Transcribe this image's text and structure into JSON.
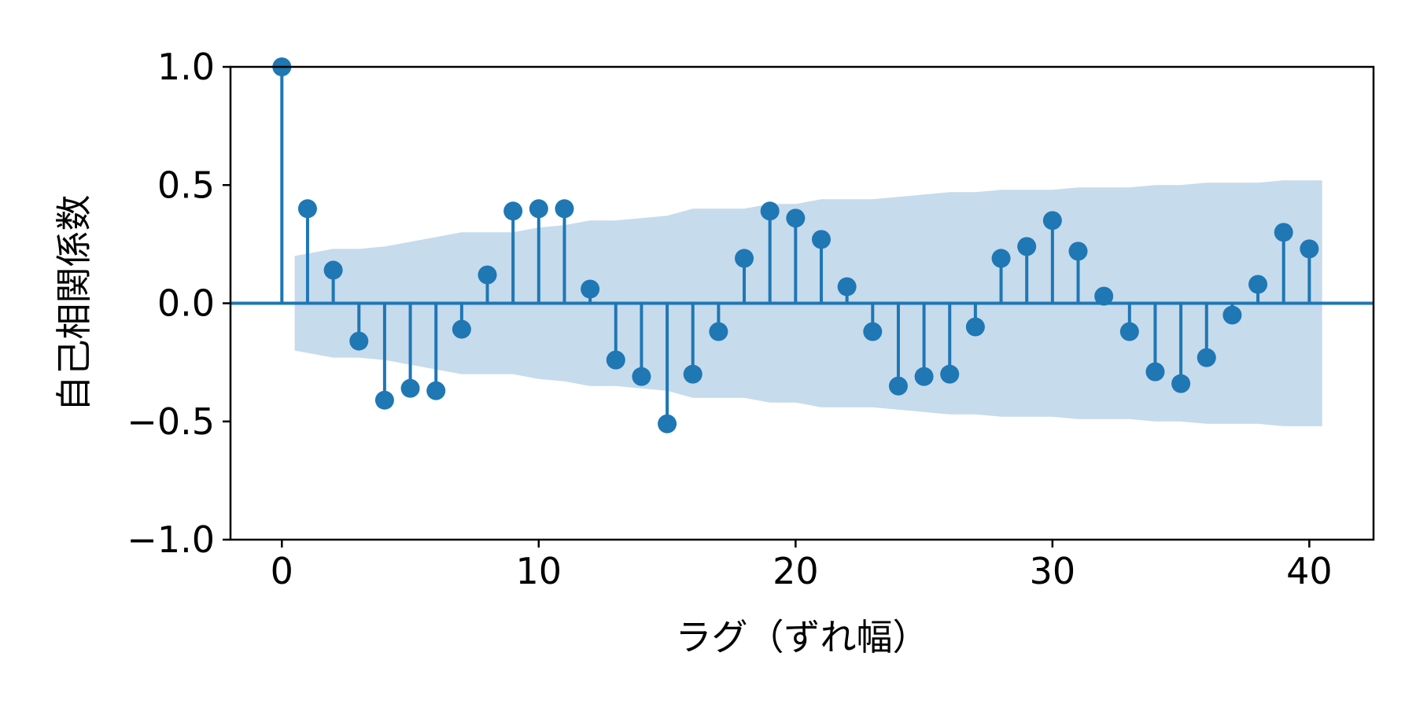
{
  "chart_data": {
    "type": "stem",
    "title": "",
    "xlabel": "ラグ（ずれ幅）",
    "ylabel": "自己相関係数",
    "xlim": [
      -2,
      42.5
    ],
    "ylim": [
      -1.0,
      1.0
    ],
    "xticks": [
      0,
      10,
      20,
      30,
      40
    ],
    "xtick_labels": [
      "0",
      "10",
      "20",
      "30",
      "40"
    ],
    "yticks": [
      1.0,
      0.5,
      0.0,
      -0.5,
      -1.0
    ],
    "ytick_labels": [
      "1.0",
      "0.5",
      "0.0",
      "−0.5",
      "−1.0"
    ],
    "grid": false,
    "color": "#1f77b4",
    "band_color": "#c6dbec",
    "lags": [
      0,
      1,
      2,
      3,
      4,
      5,
      6,
      7,
      8,
      9,
      10,
      11,
      12,
      13,
      14,
      15,
      16,
      17,
      18,
      19,
      20,
      21,
      22,
      23,
      24,
      25,
      26,
      27,
      28,
      29,
      30,
      31,
      32,
      33,
      34,
      35,
      36,
      37,
      38,
      39,
      40
    ],
    "values": [
      1.0,
      0.4,
      0.14,
      -0.16,
      -0.41,
      -0.36,
      -0.37,
      -0.11,
      0.12,
      0.39,
      0.4,
      0.4,
      0.06,
      -0.24,
      -0.31,
      -0.51,
      -0.3,
      -0.12,
      0.19,
      0.39,
      0.36,
      0.27,
      0.07,
      -0.12,
      -0.35,
      -0.31,
      -0.3,
      -0.1,
      0.19,
      0.24,
      0.35,
      0.22,
      0.03,
      -0.12,
      -0.29,
      -0.34,
      -0.23,
      -0.05,
      0.08,
      0.3,
      0.23
    ],
    "confidence_band": {
      "lags": [
        0.5,
        1,
        2,
        3,
        4,
        5,
        6,
        7,
        8,
        9,
        10,
        11,
        12,
        13,
        14,
        15,
        16,
        17,
        18,
        19,
        20,
        21,
        22,
        23,
        24,
        25,
        26,
        27,
        28,
        29,
        30,
        31,
        32,
        33,
        34,
        35,
        36,
        37,
        38,
        39,
        40,
        40.5
      ],
      "upper": [
        0.2,
        0.21,
        0.23,
        0.23,
        0.24,
        0.26,
        0.28,
        0.3,
        0.3,
        0.3,
        0.32,
        0.33,
        0.35,
        0.35,
        0.36,
        0.37,
        0.4,
        0.4,
        0.4,
        0.42,
        0.42,
        0.44,
        0.44,
        0.44,
        0.45,
        0.46,
        0.47,
        0.47,
        0.48,
        0.48,
        0.48,
        0.49,
        0.49,
        0.49,
        0.5,
        0.5,
        0.51,
        0.51,
        0.51,
        0.52,
        0.52,
        0.52
      ]
    }
  }
}
